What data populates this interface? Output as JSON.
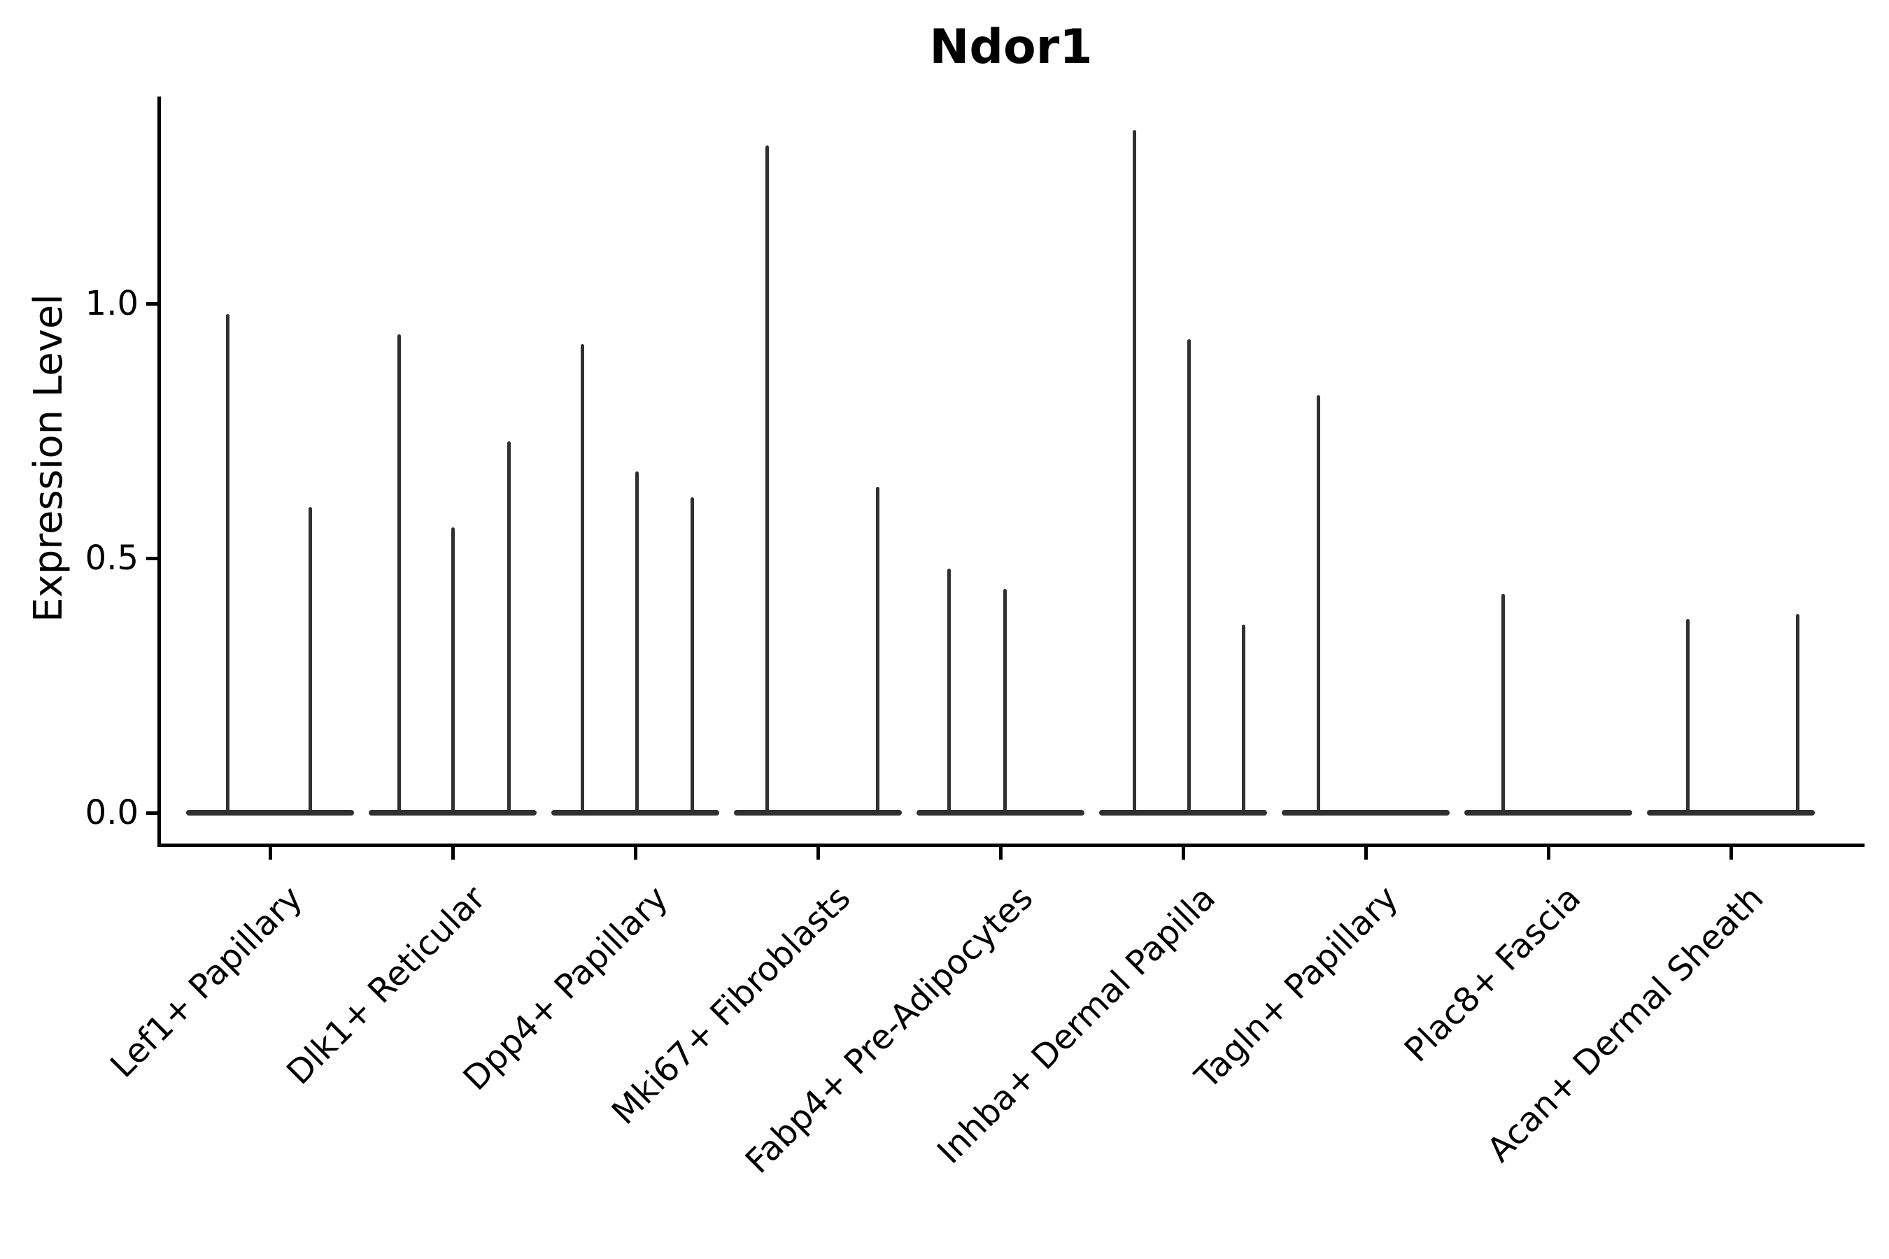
{
  "figure": {
    "title": "Ndor1",
    "background_color": "#ffffff",
    "axis_color": "#000000",
    "violin_color": "#303030",
    "text_color": "#000000"
  },
  "axes": {
    "ylabel": "Expression Level",
    "ytick_labels": [
      "0.0",
      "0.5",
      "1.0"
    ],
    "x_tick_rotation_deg": 45
  },
  "chart_data": {
    "type": "violin",
    "title": "Ndor1",
    "xlabel": "",
    "ylabel": "Expression Level",
    "ylim": [
      0,
      1.41
    ],
    "yticks": [
      0.0,
      0.5,
      1.0
    ],
    "grid": false,
    "legend": "none",
    "description": "Violin plot of Ndor1 expression per fibroblast cluster; each violin is collapsed to a flat baseline at 0 with thin vertical density spikes at the expression values of the few expressing cells.",
    "violin_half_width": 0.46,
    "baseline_value": 0.0,
    "categories": [
      "Lef1+ Papillary",
      "Dlk1+ Reticular",
      "Dpp4+ Papillary",
      "Mki67+ Fibroblasts",
      "Fabp4+ Pre-Adipocytes",
      "Inhba+ Dermal Papilla",
      "Tagln+ Papillary",
      "Plac8+ Fascia",
      "Acan+ Dermal Sheath"
    ],
    "series": [
      {
        "name": "Lef1+ Papillary",
        "spikes": [
          {
            "x_offset": -0.23,
            "value": 0.98
          },
          {
            "x_offset": 0.222,
            "value": 0.6
          }
        ]
      },
      {
        "name": "Dlk1+ Reticular",
        "spikes": [
          {
            "x_offset": -0.295,
            "value": 0.94
          },
          {
            "x_offset": 0.0,
            "value": 0.56
          },
          {
            "x_offset": 0.31,
            "value": 0.73
          }
        ]
      },
      {
        "name": "Dpp4+ Papillary",
        "spikes": [
          {
            "x_offset": -0.291,
            "value": 0.92
          },
          {
            "x_offset": 0.011,
            "value": 0.67
          },
          {
            "x_offset": 0.314,
            "value": 0.62
          }
        ]
      },
      {
        "name": "Mki67+ Fibroblasts",
        "spikes": [
          {
            "x_offset": -0.276,
            "value": 1.31
          },
          {
            "x_offset": 0.326,
            "value": 0.64
          }
        ]
      },
      {
        "name": "Fabp4+ Pre-Adipocytes",
        "spikes": [
          {
            "x_offset": -0.28,
            "value": 0.48
          },
          {
            "x_offset": 0.023,
            "value": 0.44
          }
        ]
      },
      {
        "name": "Inhba+ Dermal Papilla",
        "spikes": [
          {
            "x_offset": -0.268,
            "value": 1.34
          },
          {
            "x_offset": 0.034,
            "value": 0.93
          },
          {
            "x_offset": 0.333,
            "value": 0.37
          }
        ]
      },
      {
        "name": "Tagln+ Papillary",
        "spikes": [
          {
            "x_offset": -0.26,
            "value": 0.82
          }
        ]
      },
      {
        "name": "Plac8+ Fascia",
        "spikes": [
          {
            "x_offset": -0.249,
            "value": 0.43
          }
        ]
      },
      {
        "name": "Acan+ Dermal Sheath",
        "spikes": [
          {
            "x_offset": -0.237,
            "value": 0.38
          },
          {
            "x_offset": 0.364,
            "value": 0.39
          }
        ]
      }
    ]
  }
}
